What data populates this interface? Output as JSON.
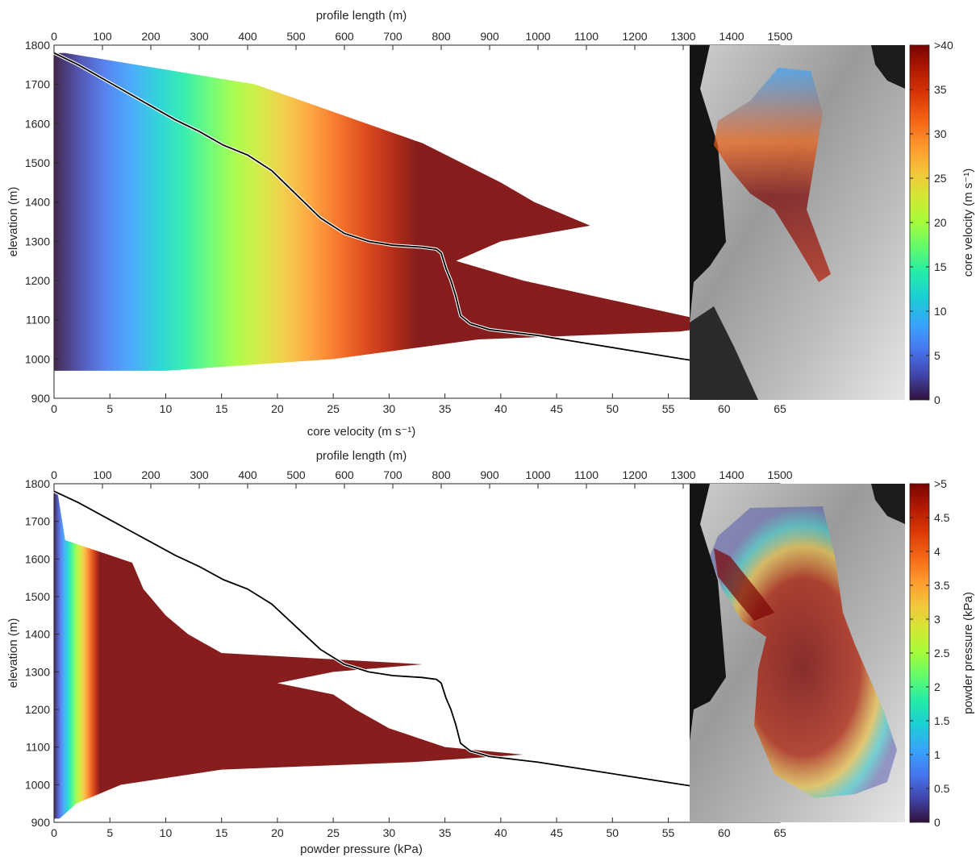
{
  "chart_data": [
    {
      "type": "scatter",
      "xlabel": "core velocity (m s⁻¹)",
      "top_xlabel": "profile length (m)",
      "ylabel": "elevation (m)",
      "xlim": [
        0,
        65
      ],
      "ylim": [
        900,
        1800
      ],
      "top_xlim": [
        0,
        1500
      ],
      "xticks": [
        "0",
        "5",
        "10",
        "15",
        "20",
        "25",
        "30",
        "35",
        "40",
        "45",
        "50",
        "55",
        "60",
        "65"
      ],
      "top_xticks": [
        "0",
        "100",
        "200",
        "300",
        "400",
        "500",
        "600",
        "700",
        "800",
        "900",
        "1000",
        "1100",
        "1200",
        "1300",
        "1400",
        "1500"
      ],
      "yticks": [
        "900",
        "1000",
        "1100",
        "1200",
        "1300",
        "1400",
        "1500",
        "1600",
        "1700",
        "1800"
      ],
      "colormap": "turbo",
      "color_range": [
        0,
        40
      ],
      "max_extent": [
        [
          1780,
          1
        ],
        [
          1700,
          18
        ],
        [
          1600,
          28
        ],
        [
          1550,
          33
        ],
        [
          1450,
          40
        ],
        [
          1400,
          43
        ],
        [
          1340,
          48
        ],
        [
          1300,
          40
        ],
        [
          1250,
          36
        ],
        [
          1200,
          42
        ],
        [
          1150,
          50
        ],
        [
          1100,
          58
        ],
        [
          1090,
          61
        ],
        [
          1070,
          56
        ],
        [
          1050,
          38
        ],
        [
          1000,
          25
        ],
        [
          970,
          10
        ]
      ],
      "profile": [
        [
          0,
          1780
        ],
        [
          50,
          1750
        ],
        [
          100,
          1715
        ],
        [
          150,
          1680
        ],
        [
          200,
          1645
        ],
        [
          250,
          1610
        ],
        [
          300,
          1580
        ],
        [
          350,
          1545
        ],
        [
          400,
          1520
        ],
        [
          450,
          1480
        ],
        [
          500,
          1420
        ],
        [
          550,
          1360
        ],
        [
          600,
          1320
        ],
        [
          650,
          1300
        ],
        [
          700,
          1290
        ],
        [
          760,
          1285
        ],
        [
          790,
          1280
        ],
        [
          800,
          1270
        ],
        [
          810,
          1230
        ],
        [
          820,
          1200
        ],
        [
          830,
          1160
        ],
        [
          840,
          1110
        ],
        [
          860,
          1090
        ],
        [
          900,
          1075
        ],
        [
          1000,
          1060
        ],
        [
          1100,
          1040
        ],
        [
          1200,
          1020
        ],
        [
          1300,
          1000
        ],
        [
          1380,
          985
        ],
        [
          1405,
          980
        ]
      ],
      "colorbar": {
        "label": "core velocity (m s⁻¹)",
        "ticks": [
          "0",
          "5",
          "10",
          "15",
          "20",
          "25",
          "30",
          "35",
          ">40"
        ]
      }
    },
    {
      "type": "scatter",
      "xlabel": "powder pressure (kPa)",
      "top_xlabel": "profile length (m)",
      "ylabel": "elevation (m)",
      "xlim": [
        0,
        65
      ],
      "ylim": [
        900,
        1800
      ],
      "top_xlim": [
        0,
        1500
      ],
      "xticks": [
        "0",
        "5",
        "10",
        "15",
        "20",
        "25",
        "30",
        "35",
        "40",
        "45",
        "50",
        "55",
        "60",
        "65"
      ],
      "top_xticks": [
        "0",
        "100",
        "200",
        "300",
        "400",
        "500",
        "600",
        "700",
        "800",
        "900",
        "1000",
        "1100",
        "1200",
        "1300",
        "1400",
        "1500"
      ],
      "yticks": [
        "900",
        "1000",
        "1100",
        "1200",
        "1300",
        "1400",
        "1500",
        "1600",
        "1700",
        "1800"
      ],
      "colormap": "turbo",
      "color_range": [
        0,
        5
      ],
      "max_extent": [
        [
          1780,
          0.3
        ],
        [
          1650,
          1
        ],
        [
          1590,
          7
        ],
        [
          1520,
          8
        ],
        [
          1450,
          10
        ],
        [
          1400,
          12
        ],
        [
          1350,
          15
        ],
        [
          1320,
          33
        ],
        [
          1300,
          25
        ],
        [
          1270,
          20
        ],
        [
          1240,
          25
        ],
        [
          1200,
          27
        ],
        [
          1150,
          30
        ],
        [
          1100,
          35
        ],
        [
          1080,
          42
        ],
        [
          1060,
          32
        ],
        [
          1040,
          15
        ],
        [
          1000,
          6
        ],
        [
          950,
          2
        ],
        [
          910,
          0.5
        ]
      ],
      "profile": [
        [
          0,
          1780
        ],
        [
          50,
          1750
        ],
        [
          100,
          1715
        ],
        [
          150,
          1680
        ],
        [
          200,
          1645
        ],
        [
          250,
          1610
        ],
        [
          300,
          1580
        ],
        [
          350,
          1545
        ],
        [
          400,
          1520
        ],
        [
          450,
          1480
        ],
        [
          500,
          1420
        ],
        [
          550,
          1360
        ],
        [
          600,
          1320
        ],
        [
          650,
          1300
        ],
        [
          700,
          1290
        ],
        [
          760,
          1285
        ],
        [
          790,
          1280
        ],
        [
          800,
          1270
        ],
        [
          810,
          1230
        ],
        [
          820,
          1200
        ],
        [
          830,
          1160
        ],
        [
          840,
          1110
        ],
        [
          860,
          1090
        ],
        [
          900,
          1075
        ],
        [
          1000,
          1060
        ],
        [
          1100,
          1040
        ],
        [
          1200,
          1020
        ],
        [
          1300,
          1000
        ],
        [
          1380,
          985
        ],
        [
          1405,
          980
        ]
      ],
      "colorbar": {
        "label": "powder pressure (kPa)",
        "ticks": [
          "0",
          "0.5",
          "1",
          "1.5",
          "2",
          "2.5",
          "3",
          "3.5",
          "4",
          "4.5",
          ">5"
        ]
      }
    }
  ]
}
